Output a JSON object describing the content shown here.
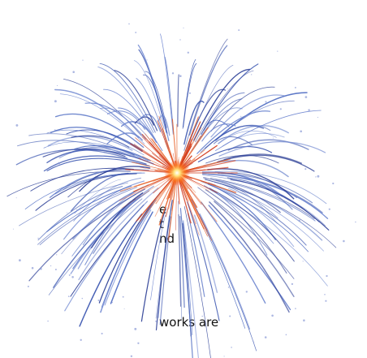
{
  "text_lines": [
    "e",
    "t",
    "nd",
    "works are"
  ]
}
